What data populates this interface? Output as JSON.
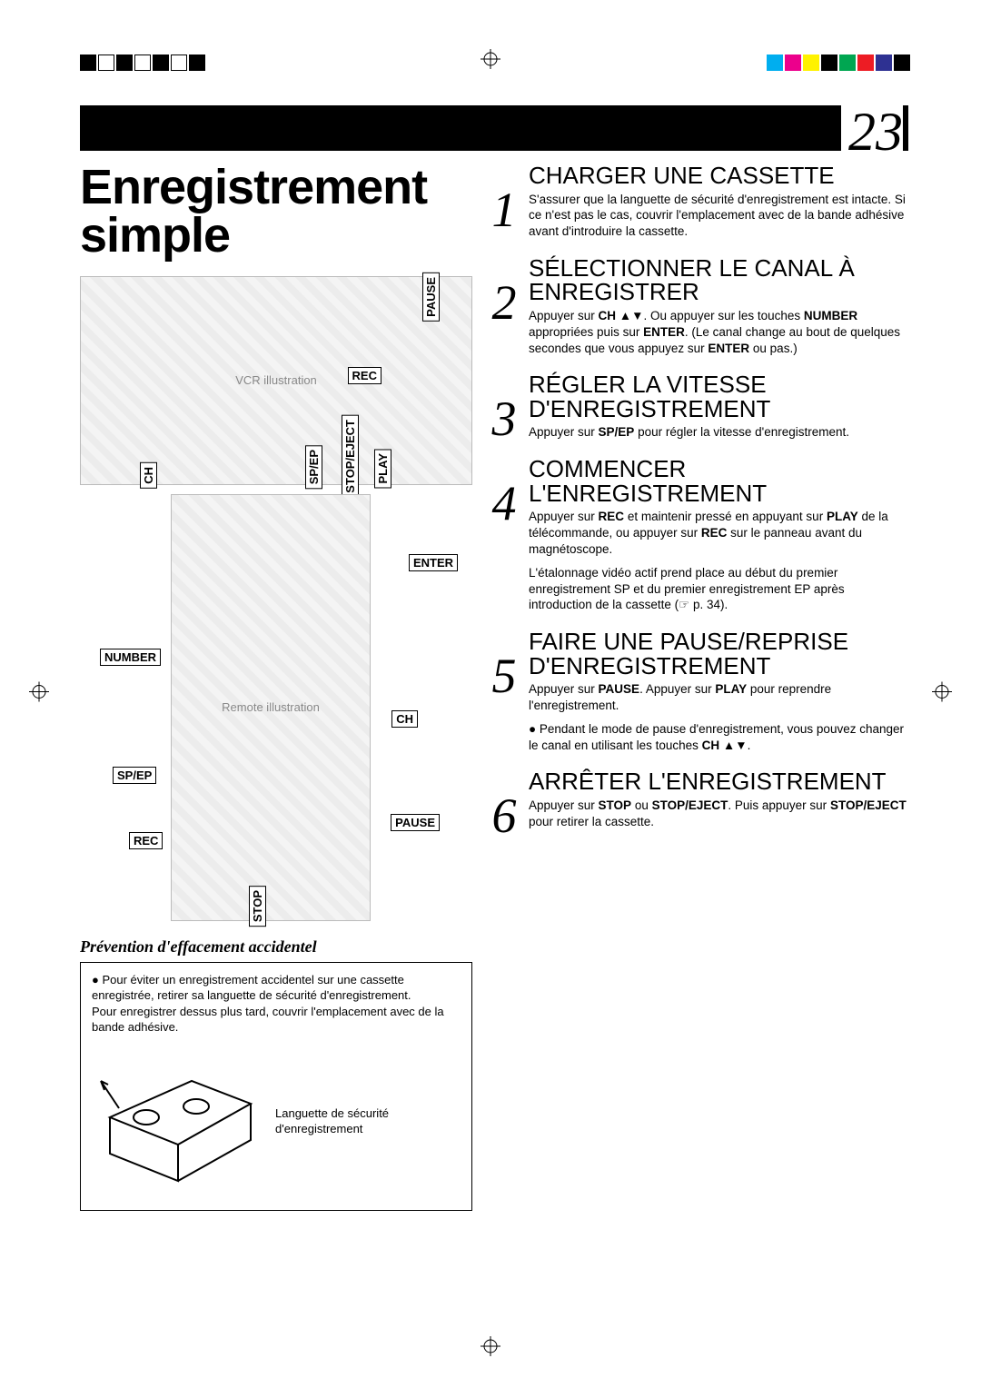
{
  "page_number": "23",
  "main_title_l1": "Enregistrement",
  "main_title_l2": "simple",
  "registration": {
    "left_squares": [
      "#000000",
      "#ffffff",
      "#000000",
      "#ffffff",
      "#000000",
      "#ffffff",
      "#000000"
    ],
    "right_squares": [
      "#00aeef",
      "#ec008c",
      "#fff200",
      "#000000",
      "#00a651",
      "#ed1c24",
      "#2e3192",
      "#000000"
    ]
  },
  "vcr_callouts": {
    "pause": "PAUSE",
    "rec": "REC",
    "ch": "CH",
    "spep": "SP/EP",
    "stopeject": "STOP/EJECT",
    "play": "PLAY"
  },
  "remote_callouts": {
    "enter": "ENTER",
    "number": "NUMBER",
    "ch": "CH",
    "spep": "SP/EP",
    "pause": "PAUSE",
    "rec": "REC",
    "stop": "STOP"
  },
  "prevention": {
    "title": "Prévention d'effacement accidentel",
    "text1": "Pour éviter un enregistrement accidentel sur une cassette enregistrée, retirer sa languette de sécurité d'enregistrement.",
    "text2": "Pour enregistrer dessus plus tard, couvrir l'emplacement avec de la bande adhésive.",
    "caption": "Languette de sécurité d'enregistrement"
  },
  "steps": [
    {
      "n": "1",
      "title": "CHARGER UNE CASSETTE",
      "body": "S'assurer que la languette de sécurité d'enregistrement est intacte. Si ce n'est pas le cas, couvrir l'emplacement avec de la bande adhésive avant d'introduire la cassette."
    },
    {
      "n": "2",
      "title": "SÉLECTIONNER LE CANAL À ENREGISTRER",
      "body_html": "Appuyer sur <b>CH</b> ▲▼. Ou appuyer sur les touches <b>NUMBER</b> appropriées puis sur <b>ENTER</b>. (Le canal change au bout de quelques secondes que vous appuyez sur <b>ENTER</b> ou pas.)"
    },
    {
      "n": "3",
      "title": "RÉGLER LA VITESSE D'ENREGISTREMENT",
      "body_html": "Appuyer sur <b>SP/EP</b> pour régler la vitesse d'enregistrement."
    },
    {
      "n": "4",
      "title": "COMMENCER L'ENREGISTREMENT",
      "body_html": "Appuyer sur <b>REC</b> et maintenir pressé en appuyant sur <b>PLAY</b> de la télécommande, ou appuyer sur <b>REC</b> sur le panneau avant du magnétoscope.",
      "sub": "L'étalonnage vidéo actif prend place au début du premier enregistrement SP et du premier enregistrement EP après introduction de la cassette (☞ p. 34)."
    },
    {
      "n": "5",
      "title": "FAIRE UNE PAUSE/REPRISE D'ENREGISTREMENT",
      "body_html": "Appuyer sur <b>PAUSE</b>. Appuyer sur <b>PLAY</b> pour reprendre l'enregistrement.",
      "bullet_html": "Pendant le mode de pause d'enregistrement, vous pouvez changer le canal en utilisant les touches <b>CH</b> ▲▼."
    },
    {
      "n": "6",
      "title": "ARRÊTER L'ENREGISTREMENT",
      "body_html": "Appuyer sur <b>STOP</b> ou <b>STOP/EJECT</b>. Puis appuyer sur <b>STOP/EJECT</b> pour retirer la cassette."
    }
  ]
}
